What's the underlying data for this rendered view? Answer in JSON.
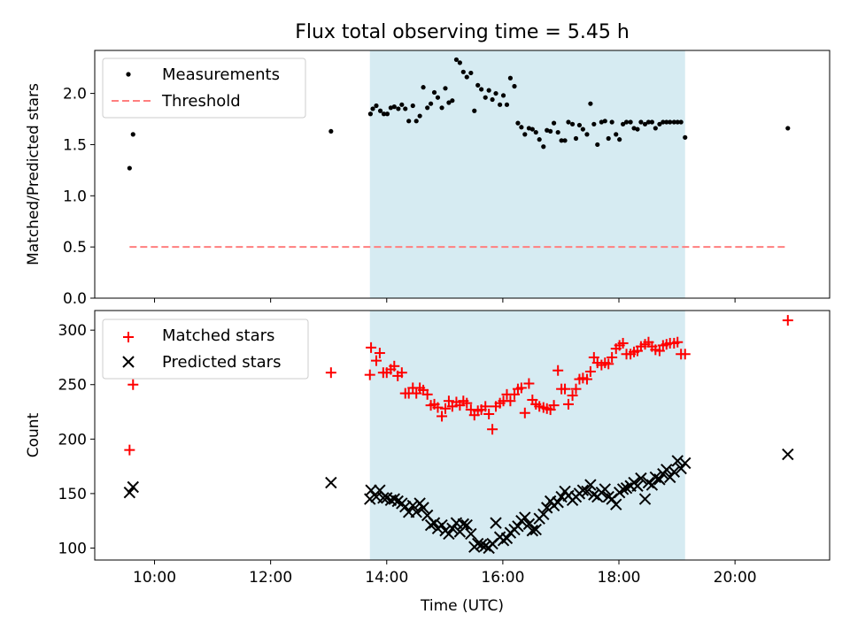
{
  "title": "Flux total observing time = 5.45 h",
  "colors": {
    "shade": "#add8e6",
    "measurement": "#000000",
    "threshold": "#ff7f7f",
    "matched": "#ff0000",
    "predicted": "#000000"
  },
  "chart_data": [
    {
      "type": "scatter",
      "ylabel": "Matched/Predicted stars",
      "ylim": [
        0,
        2.42
      ],
      "yticks": [
        "0.0",
        "0.5",
        "1.0",
        "1.5",
        "2.0"
      ],
      "ytick_values": [
        0,
        0.5,
        1.0,
        1.5,
        2.0
      ],
      "xlim_hours": [
        8.97,
        21.63
      ],
      "shaded_span_hours": [
        13.71,
        19.14
      ],
      "legend_position": "upper-left",
      "series": [
        {
          "name": "Measurements",
          "x": [
            9.57,
            9.63,
            13.04,
            13.72,
            13.76,
            13.82,
            13.89,
            13.95,
            14.01,
            14.07,
            14.13,
            14.2,
            14.26,
            14.32,
            14.38,
            14.45,
            14.51,
            14.57,
            14.63,
            14.7,
            14.76,
            14.82,
            14.88,
            14.95,
            15.01,
            15.07,
            15.13,
            15.2,
            15.26,
            15.32,
            15.38,
            15.45,
            15.51,
            15.57,
            15.63,
            15.7,
            15.76,
            15.82,
            15.88,
            15.95,
            16.01,
            16.07,
            16.13,
            16.2,
            16.26,
            16.32,
            16.38,
            16.45,
            16.51,
            16.57,
            16.63,
            16.7,
            16.76,
            16.82,
            16.88,
            16.95,
            17.01,
            17.07,
            17.13,
            17.2,
            17.26,
            17.32,
            17.38,
            17.45,
            17.51,
            17.57,
            17.63,
            17.7,
            17.76,
            17.82,
            17.88,
            17.95,
            18.01,
            18.07,
            18.13,
            18.2,
            18.26,
            18.32,
            18.38,
            18.45,
            18.51,
            18.57,
            18.63,
            18.7,
            18.76,
            18.82,
            18.88,
            18.95,
            19.01,
            19.07,
            19.14,
            20.91
          ],
          "y": [
            1.27,
            1.6,
            1.63,
            1.8,
            1.85,
            1.88,
            1.83,
            1.8,
            1.8,
            1.86,
            1.87,
            1.85,
            1.89,
            1.85,
            1.73,
            1.88,
            1.73,
            1.78,
            2.06,
            1.86,
            1.9,
            2.01,
            1.96,
            1.86,
            2.05,
            1.91,
            1.93,
            2.33,
            2.3,
            2.21,
            2.16,
            2.2,
            1.83,
            2.08,
            2.04,
            1.96,
            2.03,
            1.94,
            2.0,
            1.89,
            1.98,
            1.89,
            2.15,
            2.07,
            1.71,
            1.67,
            1.6,
            1.66,
            1.65,
            1.62,
            1.55,
            1.48,
            1.64,
            1.63,
            1.71,
            1.62,
            1.54,
            1.54,
            1.72,
            1.7,
            1.56,
            1.69,
            1.65,
            1.6,
            1.9,
            1.7,
            1.5,
            1.72,
            1.73,
            1.56,
            1.72,
            1.6,
            1.55,
            1.7,
            1.72,
            1.72,
            1.66,
            1.65,
            1.72,
            1.7,
            1.72,
            1.72,
            1.66,
            1.7,
            1.72,
            1.72,
            1.72,
            1.72,
            1.72,
            1.72,
            1.57,
            1.66
          ]
        },
        {
          "name": "Threshold",
          "x": [
            9.57,
            20.91
          ],
          "y": [
            0.5,
            0.5
          ]
        }
      ]
    },
    {
      "type": "scatter",
      "xlabel": "Time (UTC)",
      "ylabel": "Count",
      "ylim": [
        89,
        318
      ],
      "yticks": [
        "100",
        "150",
        "200",
        "250",
        "300"
      ],
      "ytick_values": [
        100,
        150,
        200,
        250,
        300
      ],
      "xlim_hours": [
        8.97,
        21.63
      ],
      "xticks": [
        "10:00",
        "12:00",
        "14:00",
        "16:00",
        "18:00",
        "20:00"
      ],
      "xtick_values": [
        10,
        12,
        14,
        16,
        18,
        20
      ],
      "shaded_span_hours": [
        13.71,
        19.14
      ],
      "legend_position": "upper-left",
      "series": [
        {
          "name": "Matched stars",
          "x": [
            9.57,
            9.63,
            13.04,
            13.71,
            13.73,
            13.82,
            13.88,
            13.94,
            14.0,
            14.07,
            14.13,
            14.19,
            14.26,
            14.32,
            14.38,
            14.45,
            14.51,
            14.57,
            14.63,
            14.7,
            14.76,
            14.82,
            14.88,
            14.95,
            15.01,
            15.07,
            15.13,
            15.2,
            15.26,
            15.32,
            15.38,
            15.45,
            15.51,
            15.57,
            15.63,
            15.7,
            15.76,
            15.82,
            15.88,
            15.95,
            16.01,
            16.07,
            16.13,
            16.2,
            16.26,
            16.32,
            16.38,
            16.45,
            16.51,
            16.57,
            16.63,
            16.7,
            16.76,
            16.82,
            16.88,
            16.95,
            17.01,
            17.07,
            17.13,
            17.2,
            17.26,
            17.32,
            17.38,
            17.45,
            17.51,
            17.57,
            17.63,
            17.7,
            17.76,
            17.82,
            17.88,
            17.95,
            18.01,
            18.07,
            18.13,
            18.2,
            18.26,
            18.32,
            18.38,
            18.45,
            18.51,
            18.57,
            18.63,
            18.7,
            18.76,
            18.82,
            18.88,
            18.95,
            19.01,
            19.07,
            19.14,
            20.91
          ],
          "y": [
            190,
            250,
            261,
            259,
            284,
            272,
            279,
            261,
            261,
            264,
            267,
            258,
            261,
            242,
            242,
            247,
            242,
            247,
            245,
            241,
            231,
            232,
            229,
            221,
            228,
            235,
            230,
            234,
            231,
            235,
            233,
            227,
            222,
            226,
            227,
            230,
            223,
            209,
            230,
            233,
            235,
            241,
            235,
            241,
            246,
            247,
            224,
            251,
            236,
            232,
            230,
            229,
            228,
            227,
            231,
            263,
            246,
            246,
            232,
            240,
            246,
            255,
            256,
            255,
            262,
            275,
            270,
            268,
            270,
            269,
            275,
            283,
            286,
            288,
            278,
            278,
            280,
            281,
            285,
            287,
            289,
            285,
            282,
            281,
            286,
            287,
            288,
            288,
            289,
            278,
            278,
            309
          ]
        },
        {
          "name": "Predicted stars",
          "x": [
            9.57,
            9.63,
            13.04,
            13.71,
            13.73,
            13.82,
            13.88,
            13.94,
            14.0,
            14.07,
            14.13,
            14.19,
            14.26,
            14.32,
            14.38,
            14.45,
            14.51,
            14.57,
            14.63,
            14.7,
            14.76,
            14.82,
            14.88,
            14.95,
            15.01,
            15.07,
            15.13,
            15.2,
            15.26,
            15.32,
            15.38,
            15.45,
            15.51,
            15.57,
            15.63,
            15.7,
            15.76,
            15.82,
            15.88,
            15.95,
            16.01,
            16.07,
            16.13,
            16.2,
            16.26,
            16.32,
            16.38,
            16.45,
            16.51,
            16.57,
            16.63,
            16.7,
            16.76,
            16.82,
            16.88,
            16.95,
            17.01,
            17.07,
            17.13,
            17.2,
            17.26,
            17.32,
            17.38,
            17.45,
            17.51,
            17.57,
            17.63,
            17.7,
            17.76,
            17.82,
            17.88,
            17.95,
            18.01,
            18.07,
            18.13,
            18.2,
            18.26,
            18.32,
            18.38,
            18.45,
            18.51,
            18.57,
            18.63,
            18.7,
            18.76,
            18.82,
            18.88,
            18.95,
            19.01,
            19.07,
            19.14,
            20.91
          ],
          "y": [
            151,
            156,
            160,
            145,
            153,
            147,
            153,
            146,
            146,
            144,
            145,
            143,
            141,
            138,
            133,
            139,
            133,
            141,
            137,
            130,
            121,
            123,
            118,
            121,
            116,
            113,
            118,
            123,
            115,
            122,
            121,
            113,
            101,
            104,
            103,
            102,
            100,
            104,
            123,
            110,
            107,
            109,
            114,
            117,
            120,
            125,
            128,
            122,
            116,
            117,
            127,
            131,
            137,
            143,
            139,
            142,
            147,
            152,
            148,
            144,
            147,
            150,
            153,
            152,
            158,
            149,
            147,
            151,
            154,
            147,
            145,
            140,
            151,
            154,
            155,
            157,
            160,
            157,
            164,
            145,
            160,
            158,
            165,
            163,
            168,
            172,
            165,
            170,
            180,
            173,
            178,
            186
          ]
        }
      ]
    }
  ]
}
